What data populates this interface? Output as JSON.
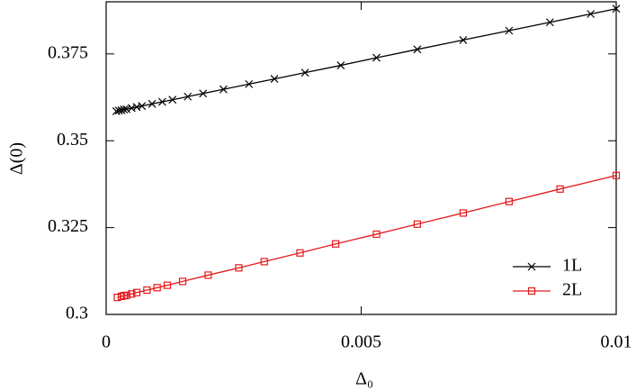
{
  "chart_data": {
    "type": "line",
    "xlabel": "Δ₀",
    "ylabel": "Δ(0)",
    "xlim": [
      0,
      0.01
    ],
    "ylim": [
      0.3,
      0.39
    ],
    "xticks": [
      0,
      0.005,
      0.01
    ],
    "yticks": [
      0.3,
      0.325,
      0.35,
      0.375
    ],
    "grid": false,
    "legend": "lower right",
    "series": [
      {
        "name": "1L",
        "color": "#000000",
        "marker": "x",
        "x": [
          0.0002,
          0.00025,
          0.0003,
          0.00035,
          0.0004,
          0.0005,
          0.0006,
          0.0007,
          0.0009,
          0.0011,
          0.0013,
          0.0016,
          0.0019,
          0.0023,
          0.0028,
          0.0033,
          0.0039,
          0.0046,
          0.0053,
          0.0061,
          0.007,
          0.0079,
          0.0087,
          0.0095,
          0.01
        ],
        "values": [
          0.3585,
          0.3587,
          0.3588,
          0.359,
          0.3591,
          0.3594,
          0.3597,
          0.36,
          0.3606,
          0.3612,
          0.3618,
          0.3627,
          0.3636,
          0.3648,
          0.3663,
          0.3678,
          0.3696,
          0.3717,
          0.3739,
          0.3763,
          0.379,
          0.3817,
          0.3841,
          0.3865,
          0.388
        ]
      },
      {
        "name": "2L",
        "color": "#e41a1c",
        "marker": "square",
        "x": [
          0.00022,
          0.0003,
          0.00035,
          0.0004,
          0.0005,
          0.0006,
          0.0008,
          0.001,
          0.0012,
          0.0015,
          0.002,
          0.0026,
          0.0031,
          0.0038,
          0.0045,
          0.0053,
          0.0061,
          0.007,
          0.0079,
          0.0089,
          0.01
        ],
        "values": [
          0.3049,
          0.3052,
          0.3054,
          0.3055,
          0.3059,
          0.3063,
          0.307,
          0.3077,
          0.3084,
          0.3095,
          0.3113,
          0.3134,
          0.3152,
          0.3177,
          0.3203,
          0.3231,
          0.326,
          0.3292,
          0.3325,
          0.3361,
          0.34
        ]
      }
    ]
  }
}
